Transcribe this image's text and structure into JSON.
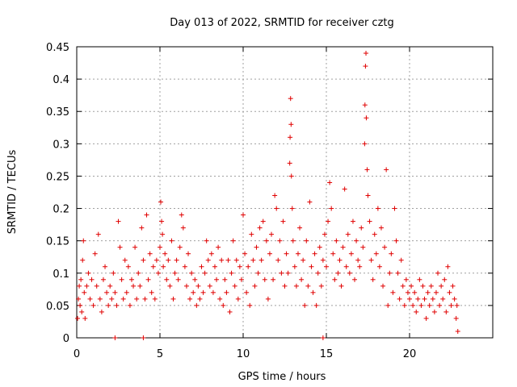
{
  "chart_data": {
    "type": "scatter",
    "title": "Day 013 of 2022, SRMTID for receiver cztg",
    "xlabel": "GPS time / hours",
    "ylabel": "SRMTID / TECUs",
    "xlim": [
      0,
      25
    ],
    "ylim": [
      0,
      0.45
    ],
    "xticks": [
      0,
      5,
      10,
      15,
      20
    ],
    "xtick_labels": [
      "0",
      "5",
      "10",
      "15",
      "20"
    ],
    "yticks": [
      0,
      0.05,
      0.1,
      0.15,
      0.2,
      0.25,
      0.3,
      0.35,
      0.4,
      0.45
    ],
    "ytick_labels": [
      "0",
      "0.05",
      "0.1",
      "0.15",
      "0.2",
      "0.25",
      "0.3",
      "0.35",
      "0.4",
      "0.45"
    ],
    "grid": true,
    "marker": "+",
    "color": "#e00000",
    "series": [
      {
        "name": "SRMTID",
        "points": [
          [
            0.05,
            0.03
          ],
          [
            0.1,
            0.06
          ],
          [
            0.15,
            0.08
          ],
          [
            0.2,
            0.05
          ],
          [
            0.25,
            0.09
          ],
          [
            0.3,
            0.04
          ],
          [
            0.35,
            0.12
          ],
          [
            0.4,
            0.15
          ],
          [
            0.45,
            0.07
          ],
          [
            0.5,
            0.03
          ],
          [
            0.6,
            0.08
          ],
          [
            0.7,
            0.1
          ],
          [
            0.8,
            0.06
          ],
          [
            0.9,
            0.09
          ],
          [
            1.0,
            0.05
          ],
          [
            1.1,
            0.13
          ],
          [
            1.2,
            0.08
          ],
          [
            1.3,
            0.16
          ],
          [
            1.4,
            0.06
          ],
          [
            1.5,
            0.04
          ],
          [
            1.6,
            0.09
          ],
          [
            1.7,
            0.11
          ],
          [
            1.8,
            0.07
          ],
          [
            1.9,
            0.05
          ],
          [
            2.0,
            0.08
          ],
          [
            2.1,
            0.06
          ],
          [
            2.2,
            0.1
          ],
          [
            2.3,
            0.07
          ],
          [
            2.4,
            0.05
          ],
          [
            2.5,
            0.18
          ],
          [
            2.6,
            0.14
          ],
          [
            2.7,
            0.09
          ],
          [
            2.8,
            0.06
          ],
          [
            2.9,
            0.12
          ],
          [
            3.0,
            0.07
          ],
          [
            3.1,
            0.11
          ],
          [
            3.2,
            0.05
          ],
          [
            3.3,
            0.09
          ],
          [
            3.4,
            0.08
          ],
          [
            3.5,
            0.14
          ],
          [
            3.6,
            0.06
          ],
          [
            3.7,
            0.1
          ],
          [
            3.8,
            0.08
          ],
          [
            3.9,
            0.17
          ],
          [
            4.0,
            0.12
          ],
          [
            4.1,
            0.06
          ],
          [
            4.2,
            0.19
          ],
          [
            4.3,
            0.09
          ],
          [
            4.4,
            0.13
          ],
          [
            4.5,
            0.07
          ],
          [
            4.6,
            0.11
          ],
          [
            4.7,
            0.06
          ],
          [
            4.8,
            0.12
          ],
          [
            4.9,
            0.1
          ],
          [
            5.0,
            0.14
          ],
          [
            5.05,
            0.21
          ],
          [
            5.1,
            0.18
          ],
          [
            5.15,
            0.16
          ],
          [
            5.2,
            0.11
          ],
          [
            5.3,
            0.13
          ],
          [
            5.4,
            0.09
          ],
          [
            5.5,
            0.12
          ],
          [
            5.6,
            0.08
          ],
          [
            5.7,
            0.15
          ],
          [
            5.8,
            0.06
          ],
          [
            5.9,
            0.1
          ],
          [
            6.0,
            0.12
          ],
          [
            6.1,
            0.09
          ],
          [
            6.2,
            0.14
          ],
          [
            6.3,
            0.19
          ],
          [
            6.4,
            0.17
          ],
          [
            6.5,
            0.11
          ],
          [
            6.6,
            0.08
          ],
          [
            6.7,
            0.13
          ],
          [
            6.8,
            0.06
          ],
          [
            6.9,
            0.1
          ],
          [
            7.0,
            0.07
          ],
          [
            7.1,
            0.09
          ],
          [
            7.2,
            0.05
          ],
          [
            7.3,
            0.08
          ],
          [
            7.4,
            0.06
          ],
          [
            7.5,
            0.11
          ],
          [
            7.6,
            0.07
          ],
          [
            7.7,
            0.1
          ],
          [
            7.8,
            0.15
          ],
          [
            7.9,
            0.12
          ],
          [
            8.0,
            0.08
          ],
          [
            8.1,
            0.13
          ],
          [
            8.2,
            0.07
          ],
          [
            8.3,
            0.11
          ],
          [
            8.4,
            0.09
          ],
          [
            8.5,
            0.14
          ],
          [
            8.6,
            0.06
          ],
          [
            8.7,
            0.12
          ],
          [
            8.8,
            0.05
          ],
          [
            8.9,
            0.09
          ],
          [
            9.0,
            0.07
          ],
          [
            9.1,
            0.12
          ],
          [
            9.2,
            0.04
          ],
          [
            9.3,
            0.1
          ],
          [
            9.4,
            0.15
          ],
          [
            9.5,
            0.08
          ],
          [
            9.6,
            0.12
          ],
          [
            9.7,
            0.06
          ],
          [
            9.8,
            0.11
          ],
          [
            9.9,
            0.09
          ],
          [
            10.0,
            0.19
          ],
          [
            10.1,
            0.13
          ],
          [
            10.2,
            0.07
          ],
          [
            10.3,
            0.11
          ],
          [
            10.4,
            0.05
          ],
          [
            10.5,
            0.16
          ],
          [
            10.6,
            0.12
          ],
          [
            10.7,
            0.08
          ],
          [
            10.8,
            0.14
          ],
          [
            10.9,
            0.1
          ],
          [
            11.0,
            0.17
          ],
          [
            11.1,
            0.12
          ],
          [
            11.2,
            0.18
          ],
          [
            11.3,
            0.09
          ],
          [
            11.4,
            0.15
          ],
          [
            11.5,
            0.06
          ],
          [
            11.6,
            0.13
          ],
          [
            11.7,
            0.16
          ],
          [
            11.8,
            0.09
          ],
          [
            11.9,
            0.22
          ],
          [
            12.0,
            0.2
          ],
          [
            12.1,
            0.12
          ],
          [
            12.2,
            0.15
          ],
          [
            12.3,
            0.1
          ],
          [
            12.4,
            0.18
          ],
          [
            12.5,
            0.08
          ],
          [
            12.6,
            0.13
          ],
          [
            12.7,
            0.1
          ],
          [
            12.8,
            0.27
          ],
          [
            12.82,
            0.31
          ],
          [
            12.85,
            0.37
          ],
          [
            12.88,
            0.33
          ],
          [
            12.9,
            0.25
          ],
          [
            12.95,
            0.2
          ],
          [
            13.0,
            0.15
          ],
          [
            13.1,
            0.11
          ],
          [
            13.2,
            0.08
          ],
          [
            13.3,
            0.13
          ],
          [
            13.4,
            0.17
          ],
          [
            13.5,
            0.09
          ],
          [
            13.6,
            0.12
          ],
          [
            13.7,
            0.05
          ],
          [
            13.8,
            0.15
          ],
          [
            13.9,
            0.08
          ],
          [
            14.0,
            0.21
          ],
          [
            14.1,
            0.11
          ],
          [
            14.2,
            0.07
          ],
          [
            14.3,
            0.13
          ],
          [
            14.4,
            0.05
          ],
          [
            14.5,
            0.1
          ],
          [
            14.6,
            0.14
          ],
          [
            14.7,
            0.08
          ],
          [
            14.8,
            0.12
          ],
          [
            14.9,
            0.16
          ],
          [
            15.0,
            0.11
          ],
          [
            15.1,
            0.18
          ],
          [
            15.2,
            0.24
          ],
          [
            15.3,
            0.2
          ],
          [
            15.4,
            0.13
          ],
          [
            15.5,
            0.09
          ],
          [
            15.6,
            0.15
          ],
          [
            15.7,
            0.1
          ],
          [
            15.8,
            0.12
          ],
          [
            15.9,
            0.08
          ],
          [
            16.0,
            0.14
          ],
          [
            16.1,
            0.23
          ],
          [
            16.2,
            0.11
          ],
          [
            16.3,
            0.16
          ],
          [
            16.4,
            0.1
          ],
          [
            16.5,
            0.13
          ],
          [
            16.6,
            0.18
          ],
          [
            16.7,
            0.09
          ],
          [
            16.8,
            0.15
          ],
          [
            16.9,
            0.12
          ],
          [
            17.0,
            0.11
          ],
          [
            17.1,
            0.17
          ],
          [
            17.2,
            0.14
          ],
          [
            17.3,
            0.3
          ],
          [
            17.32,
            0.36
          ],
          [
            17.35,
            0.42
          ],
          [
            17.38,
            0.44
          ],
          [
            17.4,
            0.34
          ],
          [
            17.45,
            0.26
          ],
          [
            17.5,
            0.22
          ],
          [
            17.6,
            0.18
          ],
          [
            17.7,
            0.12
          ],
          [
            17.8,
            0.09
          ],
          [
            17.9,
            0.16
          ],
          [
            18.0,
            0.13
          ],
          [
            18.1,
            0.2
          ],
          [
            18.2,
            0.11
          ],
          [
            18.3,
            0.17
          ],
          [
            18.4,
            0.08
          ],
          [
            18.5,
            0.14
          ],
          [
            18.6,
            0.26
          ],
          [
            18.7,
            0.05
          ],
          [
            18.8,
            0.1
          ],
          [
            18.9,
            0.13
          ],
          [
            19.0,
            0.07
          ],
          [
            19.1,
            0.2
          ],
          [
            19.2,
            0.15
          ],
          [
            19.3,
            0.1
          ],
          [
            19.4,
            0.06
          ],
          [
            19.5,
            0.12
          ],
          [
            19.6,
            0.08
          ],
          [
            19.7,
            0.05
          ],
          [
            19.8,
            0.09
          ],
          [
            19.9,
            0.07
          ],
          [
            20.0,
            0.06
          ],
          [
            20.1,
            0.08
          ],
          [
            20.2,
            0.05
          ],
          [
            20.3,
            0.07
          ],
          [
            20.4,
            0.04
          ],
          [
            20.5,
            0.06
          ],
          [
            20.6,
            0.09
          ],
          [
            20.7,
            0.05
          ],
          [
            20.8,
            0.08
          ],
          [
            20.9,
            0.06
          ],
          [
            21.0,
            0.03
          ],
          [
            21.1,
            0.07
          ],
          [
            21.2,
            0.05
          ],
          [
            21.3,
            0.08
          ],
          [
            21.4,
            0.06
          ],
          [
            21.5,
            0.04
          ],
          [
            21.6,
            0.07
          ],
          [
            21.7,
            0.1
          ],
          [
            21.8,
            0.05
          ],
          [
            21.9,
            0.08
          ],
          [
            22.0,
            0.06
          ],
          [
            22.1,
            0.09
          ],
          [
            22.2,
            0.04
          ],
          [
            22.3,
            0.11
          ],
          [
            22.4,
            0.07
          ],
          [
            22.5,
            0.05
          ],
          [
            22.6,
            0.08
          ],
          [
            22.7,
            0.06
          ],
          [
            22.8,
            0.03
          ],
          [
            22.85,
            0.05
          ],
          [
            22.9,
            0.01
          ],
          [
            2.3,
            0.0
          ],
          [
            4.0,
            0.0
          ],
          [
            14.8,
            0.0
          ]
        ]
      }
    ]
  }
}
